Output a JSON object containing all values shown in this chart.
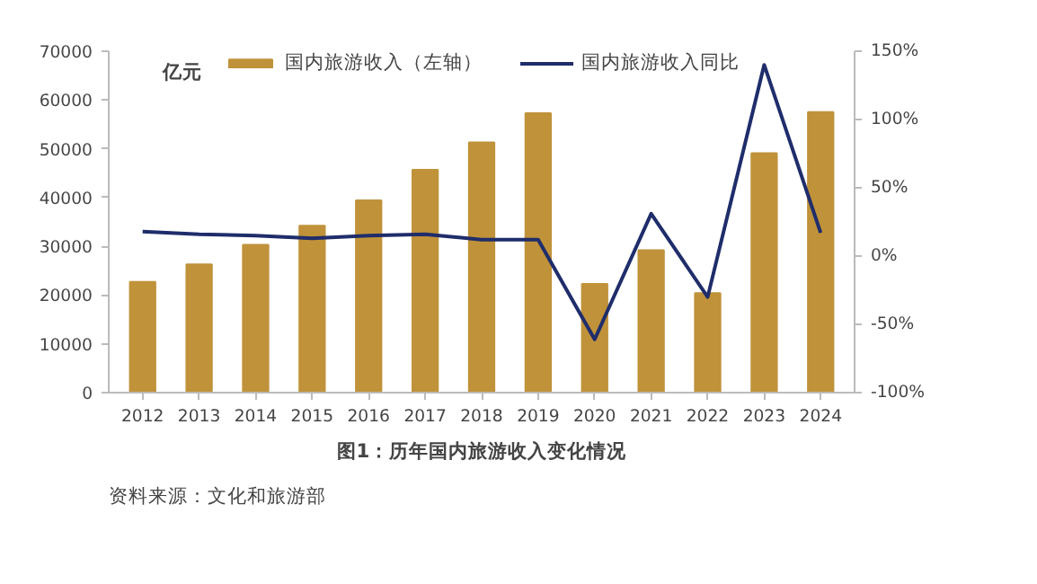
{
  "chart_data": {
    "type": "bar",
    "title": "图1：历年国内旅游收入变化情况",
    "ylabel": "亿元",
    "annotations": [
      "资料来源：文化和旅游部"
    ],
    "categories": [
      "2012",
      "2013",
      "2014",
      "2015",
      "2016",
      "2017",
      "2018",
      "2019",
      "2020",
      "2021",
      "2022",
      "2023",
      "2024"
    ],
    "series": [
      {
        "name": "国内旅游收入（左轴）",
        "color": "#c0923a",
        "values": [
          22700,
          26300,
          30300,
          34200,
          39400,
          45700,
          51300,
          57300,
          22300,
          29200,
          20400,
          49100,
          57500
        ]
      },
      {
        "name": "国内旅游收入同比",
        "type": "line",
        "axis": "y2",
        "color": "#1f2d6b",
        "values": [
          18,
          16,
          15,
          13,
          15,
          16,
          12,
          12,
          -61,
          31,
          -30,
          140,
          17
        ]
      }
    ],
    "ylim": [
      0,
      70000
    ],
    "yticks": [
      0,
      10000,
      20000,
      30000,
      40000,
      50000,
      60000,
      70000
    ],
    "y2lim": [
      -100,
      150
    ],
    "y2ticks": [
      {
        "value": -100,
        "label": "-100%"
      },
      {
        "value": -50,
        "label": "-50%"
      },
      {
        "value": 0,
        "label": "0%"
      },
      {
        "value": 50,
        "label": "50%"
      },
      {
        "value": 100,
        "label": "100%"
      },
      {
        "value": 150,
        "label": "150%"
      }
    ],
    "grid": false,
    "legend": "top"
  }
}
